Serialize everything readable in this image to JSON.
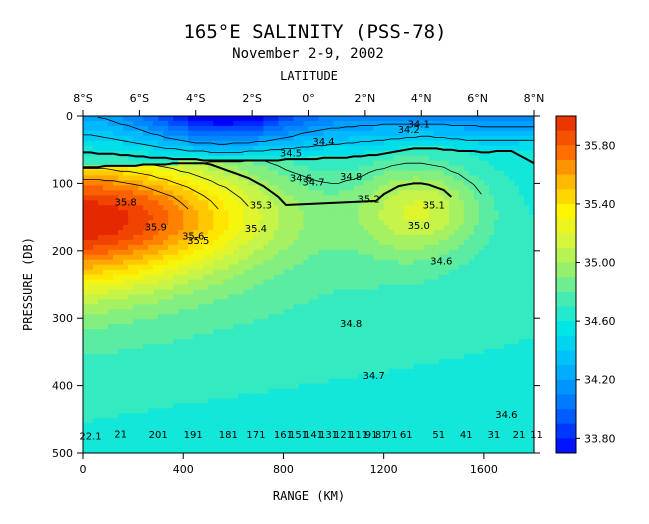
{
  "chart_data": {
    "type": "heatmap",
    "title": "165°E SALINITY (PSS-78)",
    "subtitle": "November 2-9, 2002",
    "top_axis_label": "LATITUDE",
    "top_ticks": [
      "8°S",
      "6°S",
      "4°S",
      "2°S",
      "0°",
      "2°N",
      "4°N",
      "6°N",
      "8°N"
    ],
    "xlabel": "RANGE (KM)",
    "x_ticks": [
      0,
      400,
      800,
      1200,
      1600
    ],
    "xlim": [
      0,
      1800
    ],
    "ylabel": "PRESSURE (DB)",
    "y_ticks": [
      0,
      100,
      200,
      300,
      400,
      500
    ],
    "ylim": [
      0,
      500
    ],
    "colorbar": {
      "min": 33.7,
      "max": 36.0,
      "step": 0.1,
      "labels": [
        "35.80",
        "35.40",
        "35.00",
        "34.60",
        "34.20",
        "33.80"
      ],
      "label_values": [
        35.8,
        35.4,
        35.0,
        34.6,
        34.2,
        33.8
      ]
    },
    "contour_labels": [
      {
        "text": "34.1",
        "x": 1340,
        "y": 17
      },
      {
        "text": "34.2",
        "x": 1300,
        "y": 25
      },
      {
        "text": "34.4",
        "x": 960,
        "y": 43
      },
      {
        "text": "34.5",
        "x": 830,
        "y": 60
      },
      {
        "text": "34.8",
        "x": 1070,
        "y": 95
      },
      {
        "text": "34.6",
        "x": 870,
        "y": 97
      },
      {
        "text": "34.7",
        "x": 920,
        "y": 103
      },
      {
        "text": "35.2",
        "x": 1140,
        "y": 128
      },
      {
        "text": "35.1",
        "x": 1400,
        "y": 137
      },
      {
        "text": "35.8",
        "x": 170,
        "y": 133
      },
      {
        "text": "35.3",
        "x": 710,
        "y": 137
      },
      {
        "text": "35.9",
        "x": 290,
        "y": 170
      },
      {
        "text": "35.4",
        "x": 690,
        "y": 172
      },
      {
        "text": "35.6",
        "x": 440,
        "y": 183
      },
      {
        "text": "35.5",
        "x": 460,
        "y": 190
      },
      {
        "text": "35.0",
        "x": 1340,
        "y": 168
      },
      {
        "text": "34.6",
        "x": 1430,
        "y": 220
      },
      {
        "text": "34.8",
        "x": 1070,
        "y": 313
      },
      {
        "text": "34.7",
        "x": 1160,
        "y": 390
      },
      {
        "text": "34.6",
        "x": 1690,
        "y": 448
      },
      {
        "text": "22.1",
        "x": 30,
        "y": 480
      },
      {
        "text": "21",
        "x": 150,
        "y": 477
      },
      {
        "text": "201",
        "x": 300,
        "y": 478
      },
      {
        "text": "191",
        "x": 440,
        "y": 478
      },
      {
        "text": "181",
        "x": 580,
        "y": 478
      },
      {
        "text": "171",
        "x": 690,
        "y": 478
      },
      {
        "text": "161",
        "x": 800,
        "y": 478
      },
      {
        "text": "151",
        "x": 860,
        "y": 478
      },
      {
        "text": "141",
        "x": 920,
        "y": 478
      },
      {
        "text": "131",
        "x": 980,
        "y": 478
      },
      {
        "text": "121",
        "x": 1040,
        "y": 478
      },
      {
        "text": "111",
        "x": 1100,
        "y": 478
      },
      {
        "text": "91",
        "x": 1150,
        "y": 478
      },
      {
        "text": "81",
        "x": 1190,
        "y": 478
      },
      {
        "text": "71",
        "x": 1230,
        "y": 478
      },
      {
        "text": "61",
        "x": 1290,
        "y": 478
      },
      {
        "text": "51",
        "x": 1420,
        "y": 478
      },
      {
        "text": "41",
        "x": 1530,
        "y": 478
      },
      {
        "text": "31",
        "x": 1640,
        "y": 478
      },
      {
        "text": "21",
        "x": 1740,
        "y": 478
      },
      {
        "text": "11",
        "x": 1810,
        "y": 478
      }
    ]
  }
}
